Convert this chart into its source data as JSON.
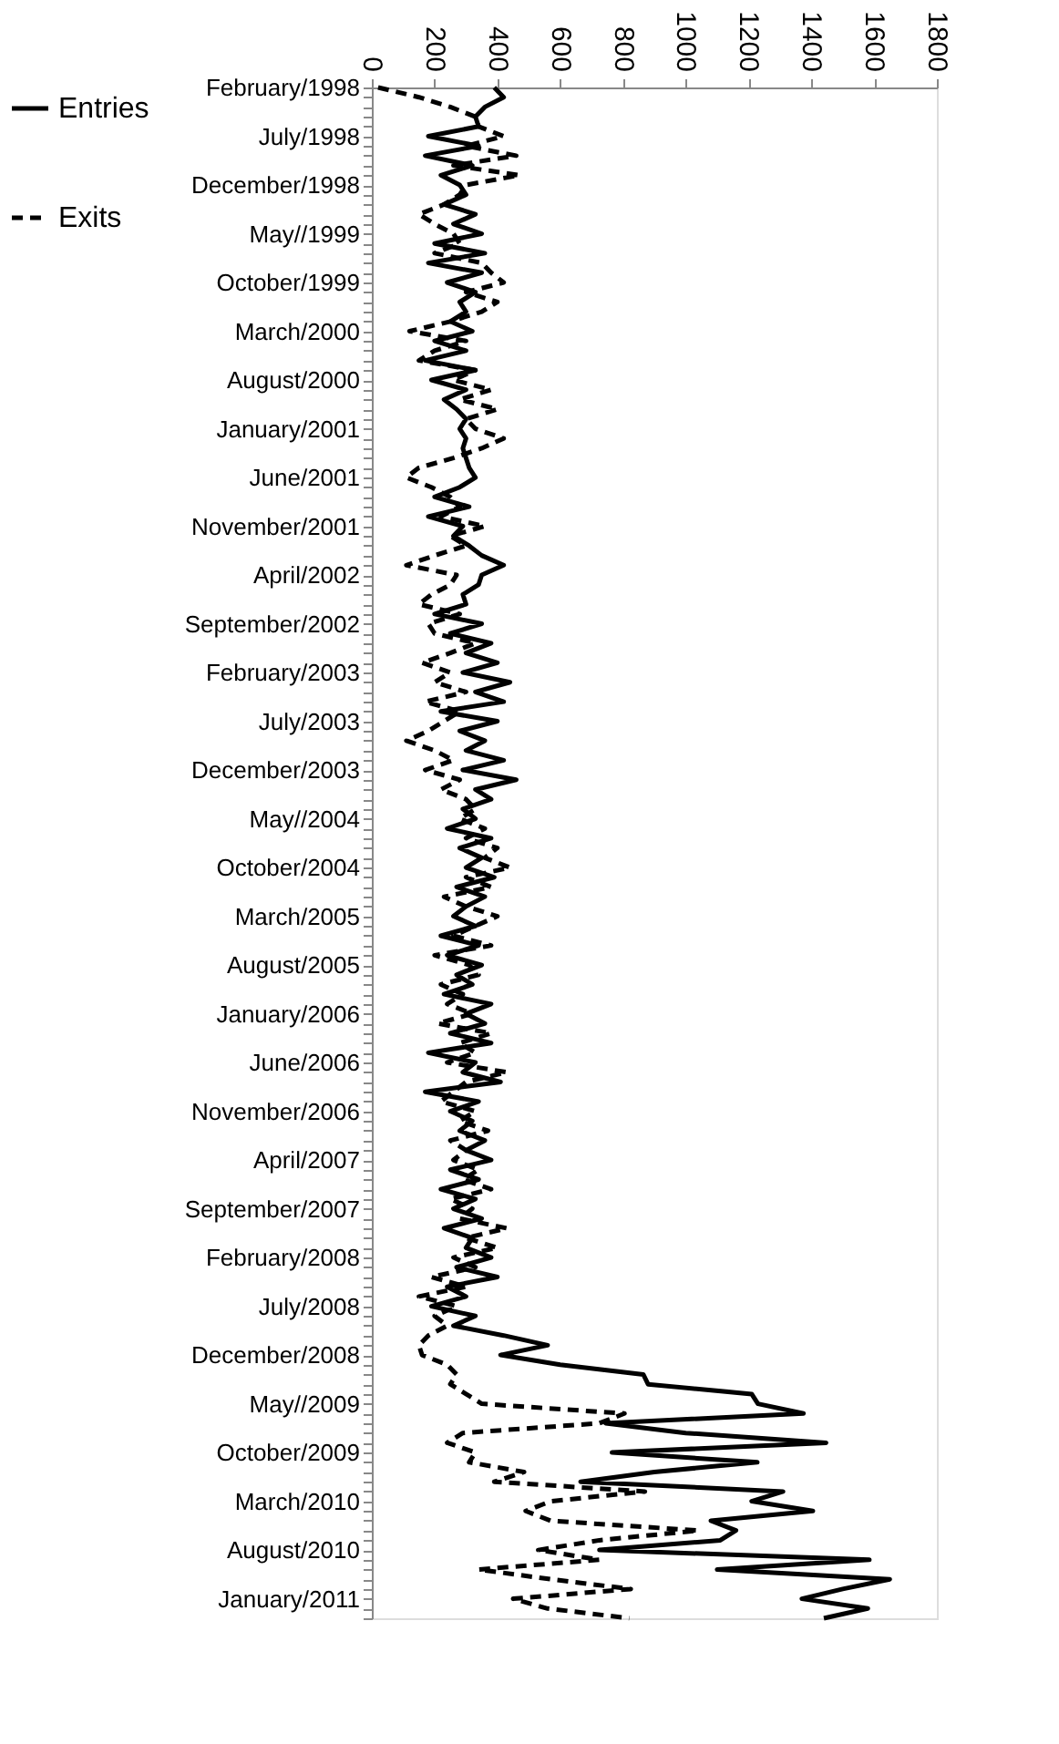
{
  "chart_data": {
    "type": "line",
    "orientation": "horizontal",
    "legend": "left",
    "categories": [
      "February/1998",
      null,
      null,
      null,
      null,
      "July/1998",
      null,
      null,
      null,
      null,
      "December/1998",
      null,
      null,
      null,
      null,
      "May//1999",
      null,
      null,
      null,
      null,
      "October/1999",
      null,
      null,
      null,
      null,
      "March/2000",
      null,
      null,
      null,
      null,
      "August/2000",
      null,
      null,
      null,
      null,
      "January/2001",
      null,
      null,
      null,
      null,
      "June/2001",
      null,
      null,
      null,
      null,
      "November/2001",
      null,
      null,
      null,
      null,
      "April/2002",
      null,
      null,
      null,
      null,
      "September/2002",
      null,
      null,
      null,
      null,
      "February/2003",
      null,
      null,
      null,
      null,
      "July/2003",
      null,
      null,
      null,
      null,
      "December/2003",
      null,
      null,
      null,
      null,
      "May//2004",
      null,
      null,
      null,
      null,
      "October/2004",
      null,
      null,
      null,
      null,
      "March/2005",
      null,
      null,
      null,
      null,
      "August/2005",
      null,
      null,
      null,
      null,
      "January/2006",
      null,
      null,
      null,
      null,
      "June/2006",
      null,
      null,
      null,
      null,
      "November/2006",
      null,
      null,
      null,
      null,
      "April/2007",
      null,
      null,
      null,
      null,
      "September/2007",
      null,
      null,
      null,
      null,
      "February/2008",
      null,
      null,
      null,
      null,
      "July/2008",
      null,
      null,
      null,
      null,
      "December/2008",
      null,
      null,
      null,
      null,
      "May//2009",
      null,
      null,
      null,
      null,
      "October/2009",
      null,
      null,
      null,
      null,
      "March/2010",
      null,
      null,
      null,
      null,
      "August/2010",
      null,
      null,
      null,
      null,
      "January/2011",
      null,
      null
    ],
    "xlim": [
      0,
      1800
    ],
    "xticks": [
      0,
      200,
      400,
      600,
      800,
      1000,
      1200,
      1400,
      1600,
      1800
    ],
    "series": [
      {
        "name": "Entries",
        "color": "#000000",
        "line_style": "solid",
        "values": [
          390,
          420,
          360,
          330,
          340,
          180,
          340,
          170,
          320,
          220,
          280,
          300,
          230,
          330,
          260,
          350,
          200,
          360,
          180,
          350,
          240,
          330,
          280,
          300,
          250,
          320,
          200,
          300,
          170,
          330,
          190,
          300,
          230,
          270,
          300,
          280,
          300,
          290,
          300,
          310,
          330,
          280,
          200,
          310,
          180,
          290,
          260,
          310,
          350,
          420,
          350,
          340,
          290,
          300,
          200,
          350,
          250,
          380,
          300,
          400,
          290,
          440,
          330,
          420,
          220,
          400,
          280,
          360,
          300,
          420,
          290,
          460,
          330,
          380,
          290,
          330,
          240,
          380,
          280,
          350,
          300,
          390,
          270,
          360,
          300,
          260,
          330,
          220,
          340,
          240,
          350,
          270,
          320,
          230,
          380,
          300,
          360,
          250,
          380,
          180,
          330,
          290,
          410,
          170,
          340,
          250,
          320,
          280,
          360,
          300,
          380,
          250,
          340,
          220,
          330,
          260,
          350,
          230,
          320,
          300,
          380,
          270,
          400,
          240,
          300,
          190,
          330,
          260,
          420,
          560,
          410,
          600,
          865,
          880,
          1210,
          1230,
          1375,
          745,
          1000,
          1447,
          765,
          1228,
          900,
          665,
          1310,
          1210,
          1405,
          1080,
          1160,
          1110,
          725,
          1585,
          1100,
          1650,
          1500,
          1370,
          1580,
          1440
        ]
      },
      {
        "name": "Exits",
        "color": "#000000",
        "line_style": "dashed",
        "values": [
          20,
          150,
          250,
          330,
          340,
          420,
          300,
          460,
          260,
          470,
          300,
          280,
          230,
          150,
          200,
          260,
          280,
          200,
          350,
          380,
          420,
          300,
          400,
          350,
          250,
          120,
          300,
          200,
          150,
          330,
          260,
          380,
          280,
          400,
          300,
          330,
          420,
          350,
          260,
          150,
          110,
          190,
          250,
          280,
          220,
          360,
          250,
          300,
          200,
          110,
          270,
          250,
          190,
          150,
          280,
          180,
          200,
          330,
          250,
          160,
          250,
          200,
          300,
          170,
          280,
          230,
          180,
          110,
          200,
          260,
          170,
          280,
          220,
          300,
          330,
          280,
          360,
          300,
          400,
          360,
          440,
          300,
          380,
          230,
          300,
          400,
          330,
          260,
          380,
          200,
          310,
          340,
          220,
          290,
          240,
          320,
          210,
          380,
          280,
          330,
          240,
          430,
          300,
          260,
          220,
          330,
          280,
          370,
          250,
          300,
          260,
          340,
          290,
          380,
          250,
          320,
          280,
          430,
          300,
          400,
          260,
          330,
          190,
          300,
          150,
          270,
          200,
          240,
          180,
          150,
          160,
          240,
          270,
          250,
          300,
          350,
          805,
          725,
          290,
          240,
          330,
          310,
          485,
          390,
          870,
          570,
          490,
          570,
          1040,
          725,
          530,
          725,
          340,
          570,
          825,
          450,
          560,
          820
        ]
      }
    ]
  }
}
